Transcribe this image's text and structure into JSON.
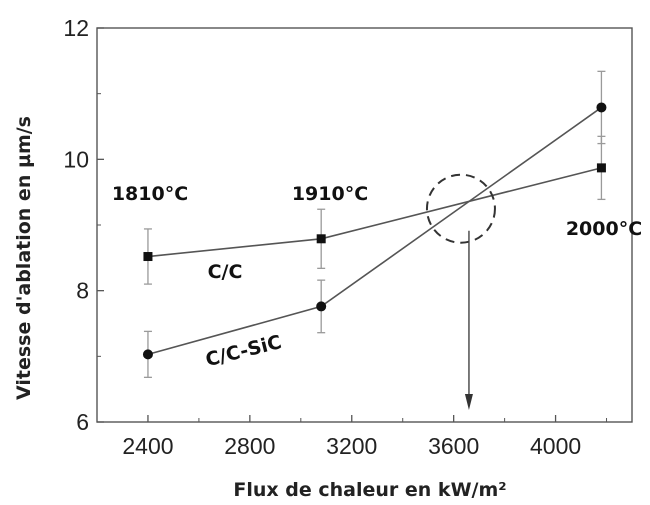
{
  "chart_data": {
    "type": "line",
    "title": "",
    "xlabel": "Flux de chaleur en kW/m²",
    "ylabel": "Vitesse d'ablation en µm/s",
    "xlim": [
      2200,
      4300
    ],
    "ylim": [
      6,
      12
    ],
    "xticks": [
      2400,
      2800,
      3200,
      3600,
      4000
    ],
    "yticks": [
      6,
      8,
      10,
      12
    ],
    "grid": false,
    "series": [
      {
        "name": "C/C",
        "marker": "square",
        "x": [
          2400,
          3080,
          4180
        ],
        "y": [
          8.52,
          8.79,
          9.87
        ],
        "err": [
          0.42,
          0.45,
          0.48
        ]
      },
      {
        "name": "C/C-SiC",
        "marker": "circle",
        "x": [
          2400,
          3080,
          4180
        ],
        "y": [
          7.03,
          7.76,
          10.79
        ],
        "err": [
          0.35,
          0.4,
          0.55
        ]
      }
    ],
    "annotations": [
      {
        "text": "1810°C",
        "x": 2400
      },
      {
        "text": "1910°C",
        "x": 3080
      },
      {
        "text": "2000°C",
        "x": 4180
      }
    ],
    "intersection": {
      "x": 3660,
      "y": 9.37
    },
    "colors": {
      "line": "#555555",
      "marker": "#111111",
      "errorbar": "#9a9a9a",
      "circle": "#333333"
    }
  }
}
